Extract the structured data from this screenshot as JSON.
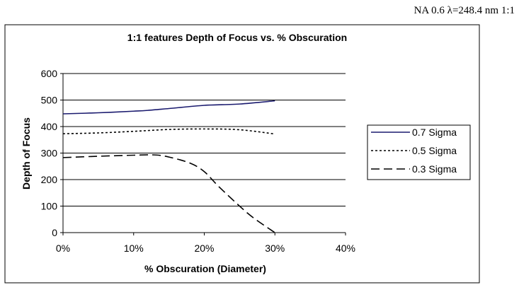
{
  "header": {
    "caption": "NA 0.6 λ=248.4 nm 1:1"
  },
  "chart_data": {
    "type": "line",
    "title": "1:1 features Depth of Focus vs. % Obscuration",
    "xlabel": "% Obscuration (Diameter)",
    "ylabel": "Depth of Focus",
    "xlim": [
      0,
      40
    ],
    "ylim": [
      0,
      600
    ],
    "x_ticks": [
      0,
      10,
      20,
      30,
      40
    ],
    "x_tick_labels": [
      "0%",
      "10%",
      "20%",
      "30%",
      "40%"
    ],
    "y_ticks": [
      0,
      100,
      200,
      300,
      400,
      500,
      600
    ],
    "y_tick_labels": [
      "0",
      "100",
      "200",
      "300",
      "400",
      "500",
      "600"
    ],
    "grid": "horizontal major gridlines",
    "legend_position": "right",
    "series": [
      {
        "name": "0.7 Sigma",
        "color": "#1a1a6e",
        "style": "solid",
        "points": [
          [
            0,
            448
          ],
          [
            5,
            452
          ],
          [
            10,
            458
          ],
          [
            12,
            461
          ],
          [
            15,
            468
          ],
          [
            20,
            480
          ],
          [
            25,
            485
          ],
          [
            30,
            497
          ]
        ]
      },
      {
        "name": "0.5 Sigma",
        "color": "#000000",
        "style": "dotted",
        "points": [
          [
            0,
            373
          ],
          [
            5,
            376
          ],
          [
            10,
            382
          ],
          [
            15,
            389
          ],
          [
            20,
            391
          ],
          [
            25,
            388
          ],
          [
            30,
            372
          ]
        ]
      },
      {
        "name": "0.3 Sigma",
        "color": "#000000",
        "style": "dashed",
        "points": [
          [
            0,
            283
          ],
          [
            5,
            288
          ],
          [
            10,
            292
          ],
          [
            13,
            293
          ],
          [
            15,
            285
          ],
          [
            18,
            262
          ],
          [
            20,
            230
          ],
          [
            22,
            175
          ],
          [
            25,
            100
          ],
          [
            27,
            55
          ],
          [
            30,
            0
          ]
        ]
      }
    ]
  }
}
